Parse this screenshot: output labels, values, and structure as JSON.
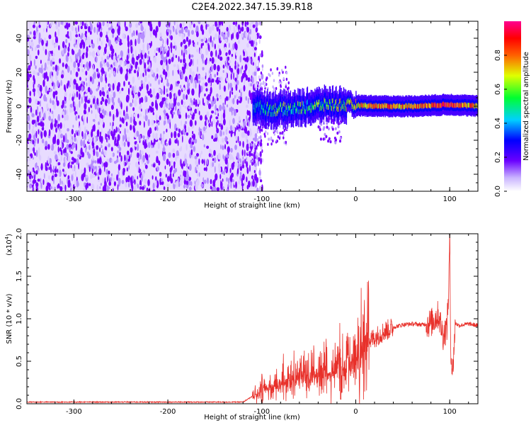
{
  "title": "C2E4.2022.347.15.39.R18",
  "chart_data": [
    {
      "type": "heatmap",
      "name": "spectrogram",
      "xlabel": "Height of straight line (km)",
      "ylabel": "Frequency (Hz)",
      "xlim": [
        -350,
        130
      ],
      "ylim": [
        -50,
        50
      ],
      "x_ticks": [
        -300,
        -200,
        -100,
        0,
        100
      ],
      "y_ticks": [
        -40,
        -20,
        0,
        20,
        40
      ],
      "noise_region_x": [
        -350,
        -105
      ],
      "signal_line": [
        {
          "x": -110,
          "freq": 0,
          "amp": 0.35
        },
        {
          "x": -90,
          "freq": -2,
          "amp": 0.55
        },
        {
          "x": -60,
          "freq": -1,
          "amp": 0.55
        },
        {
          "x": -30,
          "freq": 1,
          "amp": 0.6
        },
        {
          "x": 0,
          "freq": 0.5,
          "amp": 0.65
        },
        {
          "x": 30,
          "freq": 0,
          "amp": 0.8
        },
        {
          "x": 60,
          "freq": 0,
          "amp": 0.75
        },
        {
          "x": 100,
          "freq": 1,
          "amp": 0.9
        },
        {
          "x": 130,
          "freq": 0,
          "amp": 0.7
        }
      ],
      "colorbar": {
        "label": "Normalized spectral amplitude",
        "ticks": [
          "0.0",
          "0.2",
          "0.4",
          "0.6",
          "0.8"
        ],
        "range": [
          0,
          1
        ]
      }
    },
    {
      "type": "line",
      "name": "snr",
      "xlabel": "Height of straight line (km)",
      "ylabel": "SNR (10 * v/v)",
      "scale_label": "(x10",
      "scale_exp": "4",
      "scale_close": ")",
      "xlim": [
        -350,
        130
      ],
      "ylim": [
        0,
        2.0
      ],
      "x_ticks": [
        -300,
        -200,
        -100,
        0,
        100
      ],
      "y_ticks": [
        "0.0",
        "0.5",
        "1.0",
        "1.5",
        "2.0"
      ],
      "color": "#e8302a",
      "series": [
        {
          "name": "SNR",
          "x": [
            -350,
            -120,
            -105,
            -90,
            -70,
            -50,
            -30,
            -10,
            0,
            10,
            20,
            30,
            40,
            50,
            60,
            70,
            80,
            88,
            93,
            97,
            99,
            100,
            101,
            103,
            106,
            110,
            115,
            120,
            130
          ],
          "y": [
            0.02,
            0.02,
            0.12,
            0.2,
            0.25,
            0.3,
            0.35,
            0.45,
            0.5,
            0.7,
            0.78,
            0.85,
            0.9,
            0.93,
            0.94,
            0.93,
            0.95,
            1.05,
            0.8,
            0.9,
            1.35,
            2.0,
            0.7,
            0.35,
            0.95,
            0.92,
            0.93,
            0.94,
            0.92
          ]
        }
      ]
    }
  ]
}
